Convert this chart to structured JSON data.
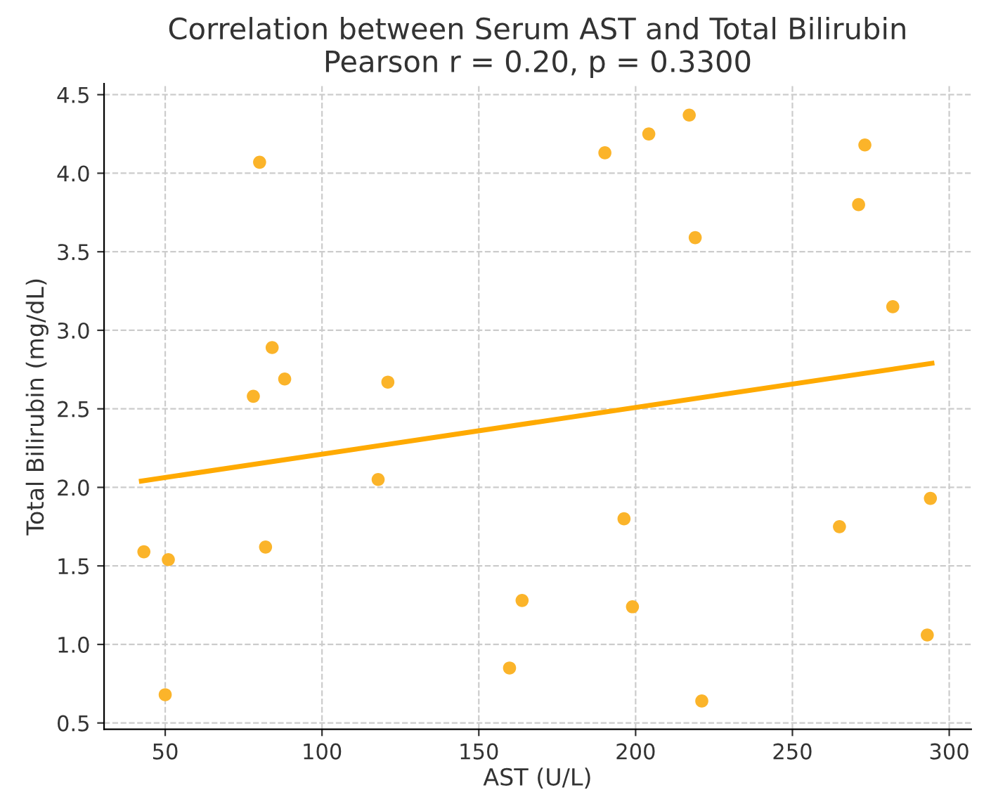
{
  "chart_data": {
    "type": "scatter",
    "title": "Correlation between Serum AST and Total Bilirubin",
    "subtitle": "Pearson r = 0.20, p = 0.3300",
    "xlabel": "AST (U/L)",
    "ylabel": "Total Bilirubin (mg/dL)",
    "series": [
      {
        "color": "#fbb42a",
        "marker": "circle",
        "x": [
          80.1,
          84.1,
          88.1,
          78.1,
          121.0,
          117.9,
          43.2,
          51.0,
          82.0,
          50,
          163.8,
          159.8,
          190.2,
          204.2,
          217.1,
          219.0,
          273.1,
          271.1,
          282.0,
          196.3,
          199.0,
          221.1,
          265.0,
          294.0,
          293.0
        ],
        "values": [
          4.07,
          2.89,
          2.69,
          2.58,
          2.67,
          2.05,
          1.59,
          1.54,
          1.62,
          0.68,
          1.28,
          0.85,
          4.13,
          4.25,
          4.37,
          3.59,
          4.18,
          3.8,
          3.15,
          1.8,
          1.24,
          0.64,
          1.75,
          1.93,
          1.06
        ]
      },
      {
        "type": "line",
        "color": "#ffaa00",
        "marker": "none",
        "line_style": "solid",
        "x": [
          42.4,
          294.5
        ],
        "values": [
          2.04,
          2.79
        ]
      }
    ],
    "xlim": [
      30.5,
      307
    ],
    "ylim": [
      0.46,
      4.57
    ],
    "xticks": [
      50,
      100,
      150,
      200,
      250,
      300
    ],
    "yticks": [
      0.5,
      {
        "value": 1,
        "label": "1.0"
      },
      1.5,
      {
        "value": 2,
        "label": "2.0"
      },
      2.5,
      {
        "value": 3,
        "label": "3.0"
      },
      3.5,
      {
        "value": 4,
        "label": "4.0"
      },
      4.5
    ],
    "grid": true
  }
}
